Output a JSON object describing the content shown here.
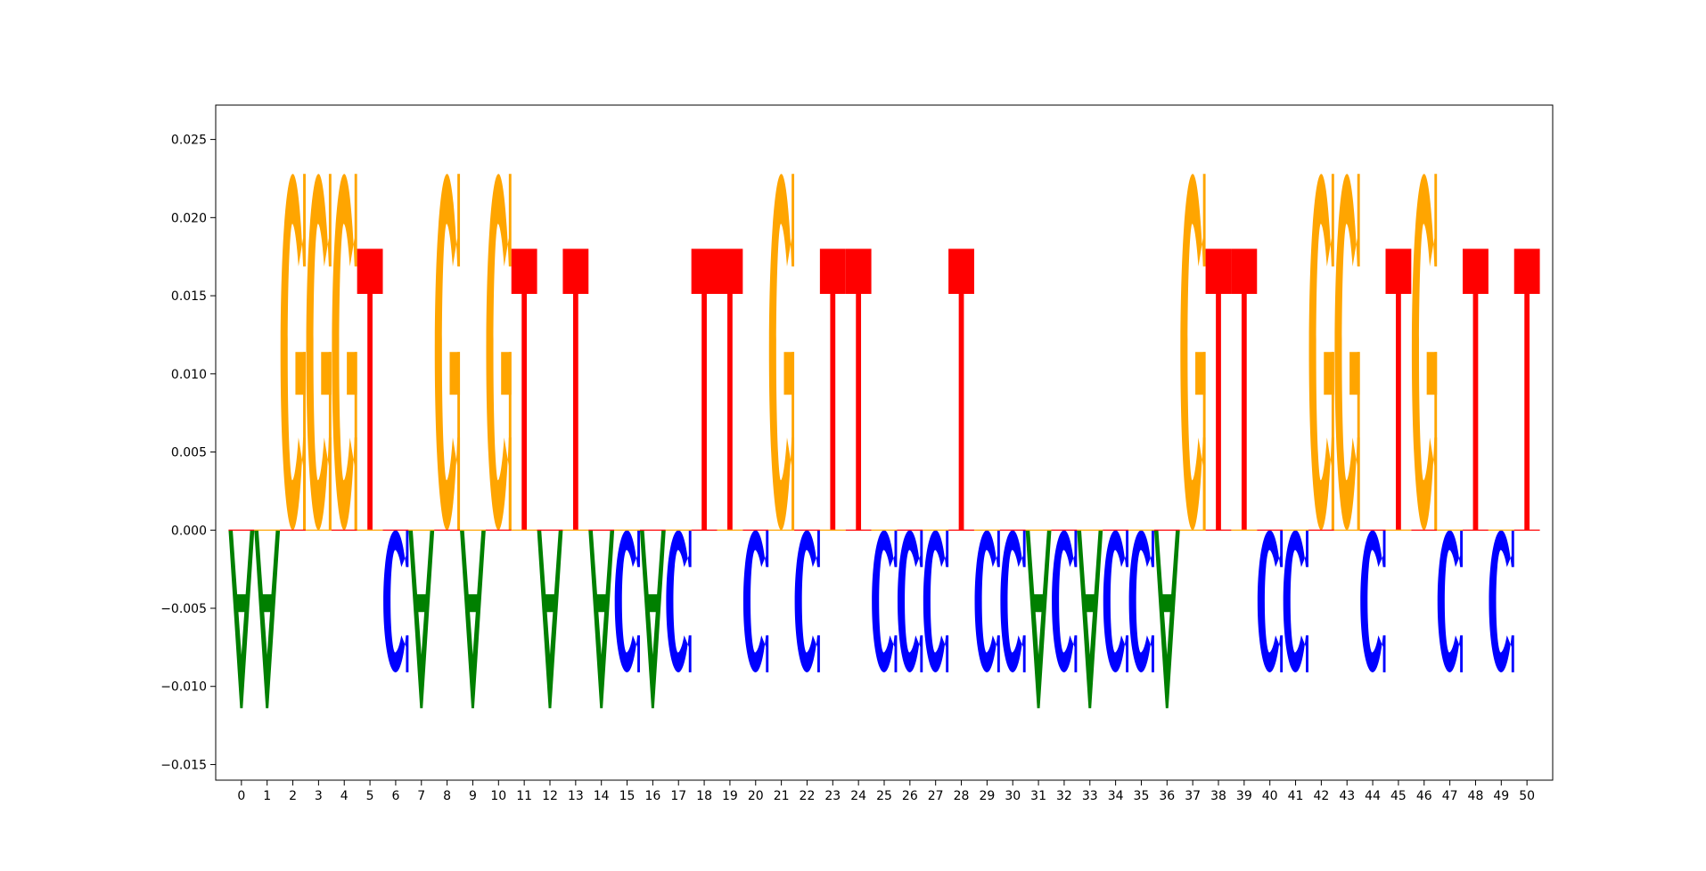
{
  "chart_data": {
    "type": "sequence-logo",
    "title": "",
    "xlabel": "",
    "ylabel": "",
    "xlim": [
      -1,
      51
    ],
    "ylim": [
      -0.016,
      0.0272
    ],
    "x_ticks": [
      0,
      1,
      2,
      3,
      4,
      5,
      6,
      7,
      8,
      9,
      10,
      11,
      12,
      13,
      14,
      15,
      16,
      17,
      18,
      19,
      20,
      21,
      22,
      23,
      24,
      25,
      26,
      27,
      28,
      29,
      30,
      31,
      32,
      33,
      34,
      35,
      36,
      37,
      38,
      39,
      40,
      41,
      42,
      43,
      44,
      45,
      46,
      47,
      48,
      49,
      50
    ],
    "y_ticks": [
      -0.015,
      -0.01,
      -0.005,
      0.0,
      0.005,
      0.01,
      0.015,
      0.02,
      0.025
    ],
    "y_tick_labels": [
      "−0.015",
      "−0.010",
      "−0.005",
      "0.000",
      "0.005",
      "0.010",
      "0.015",
      "0.020",
      "0.025"
    ],
    "grid": false,
    "legend": false,
    "letter_colors": {
      "A": "#008000",
      "C": "#0000ff",
      "G": "#ffa500",
      "T": "#ff0000"
    },
    "letter_heights": {
      "G": 0.0228,
      "T": 0.018,
      "C": -0.0091,
      "A": -0.0114
    },
    "sequence": "AAGGGTCAGAGTATACACTTCGCTTCCCTCCACACCAGTTCCGGCTGCTCT"
  }
}
